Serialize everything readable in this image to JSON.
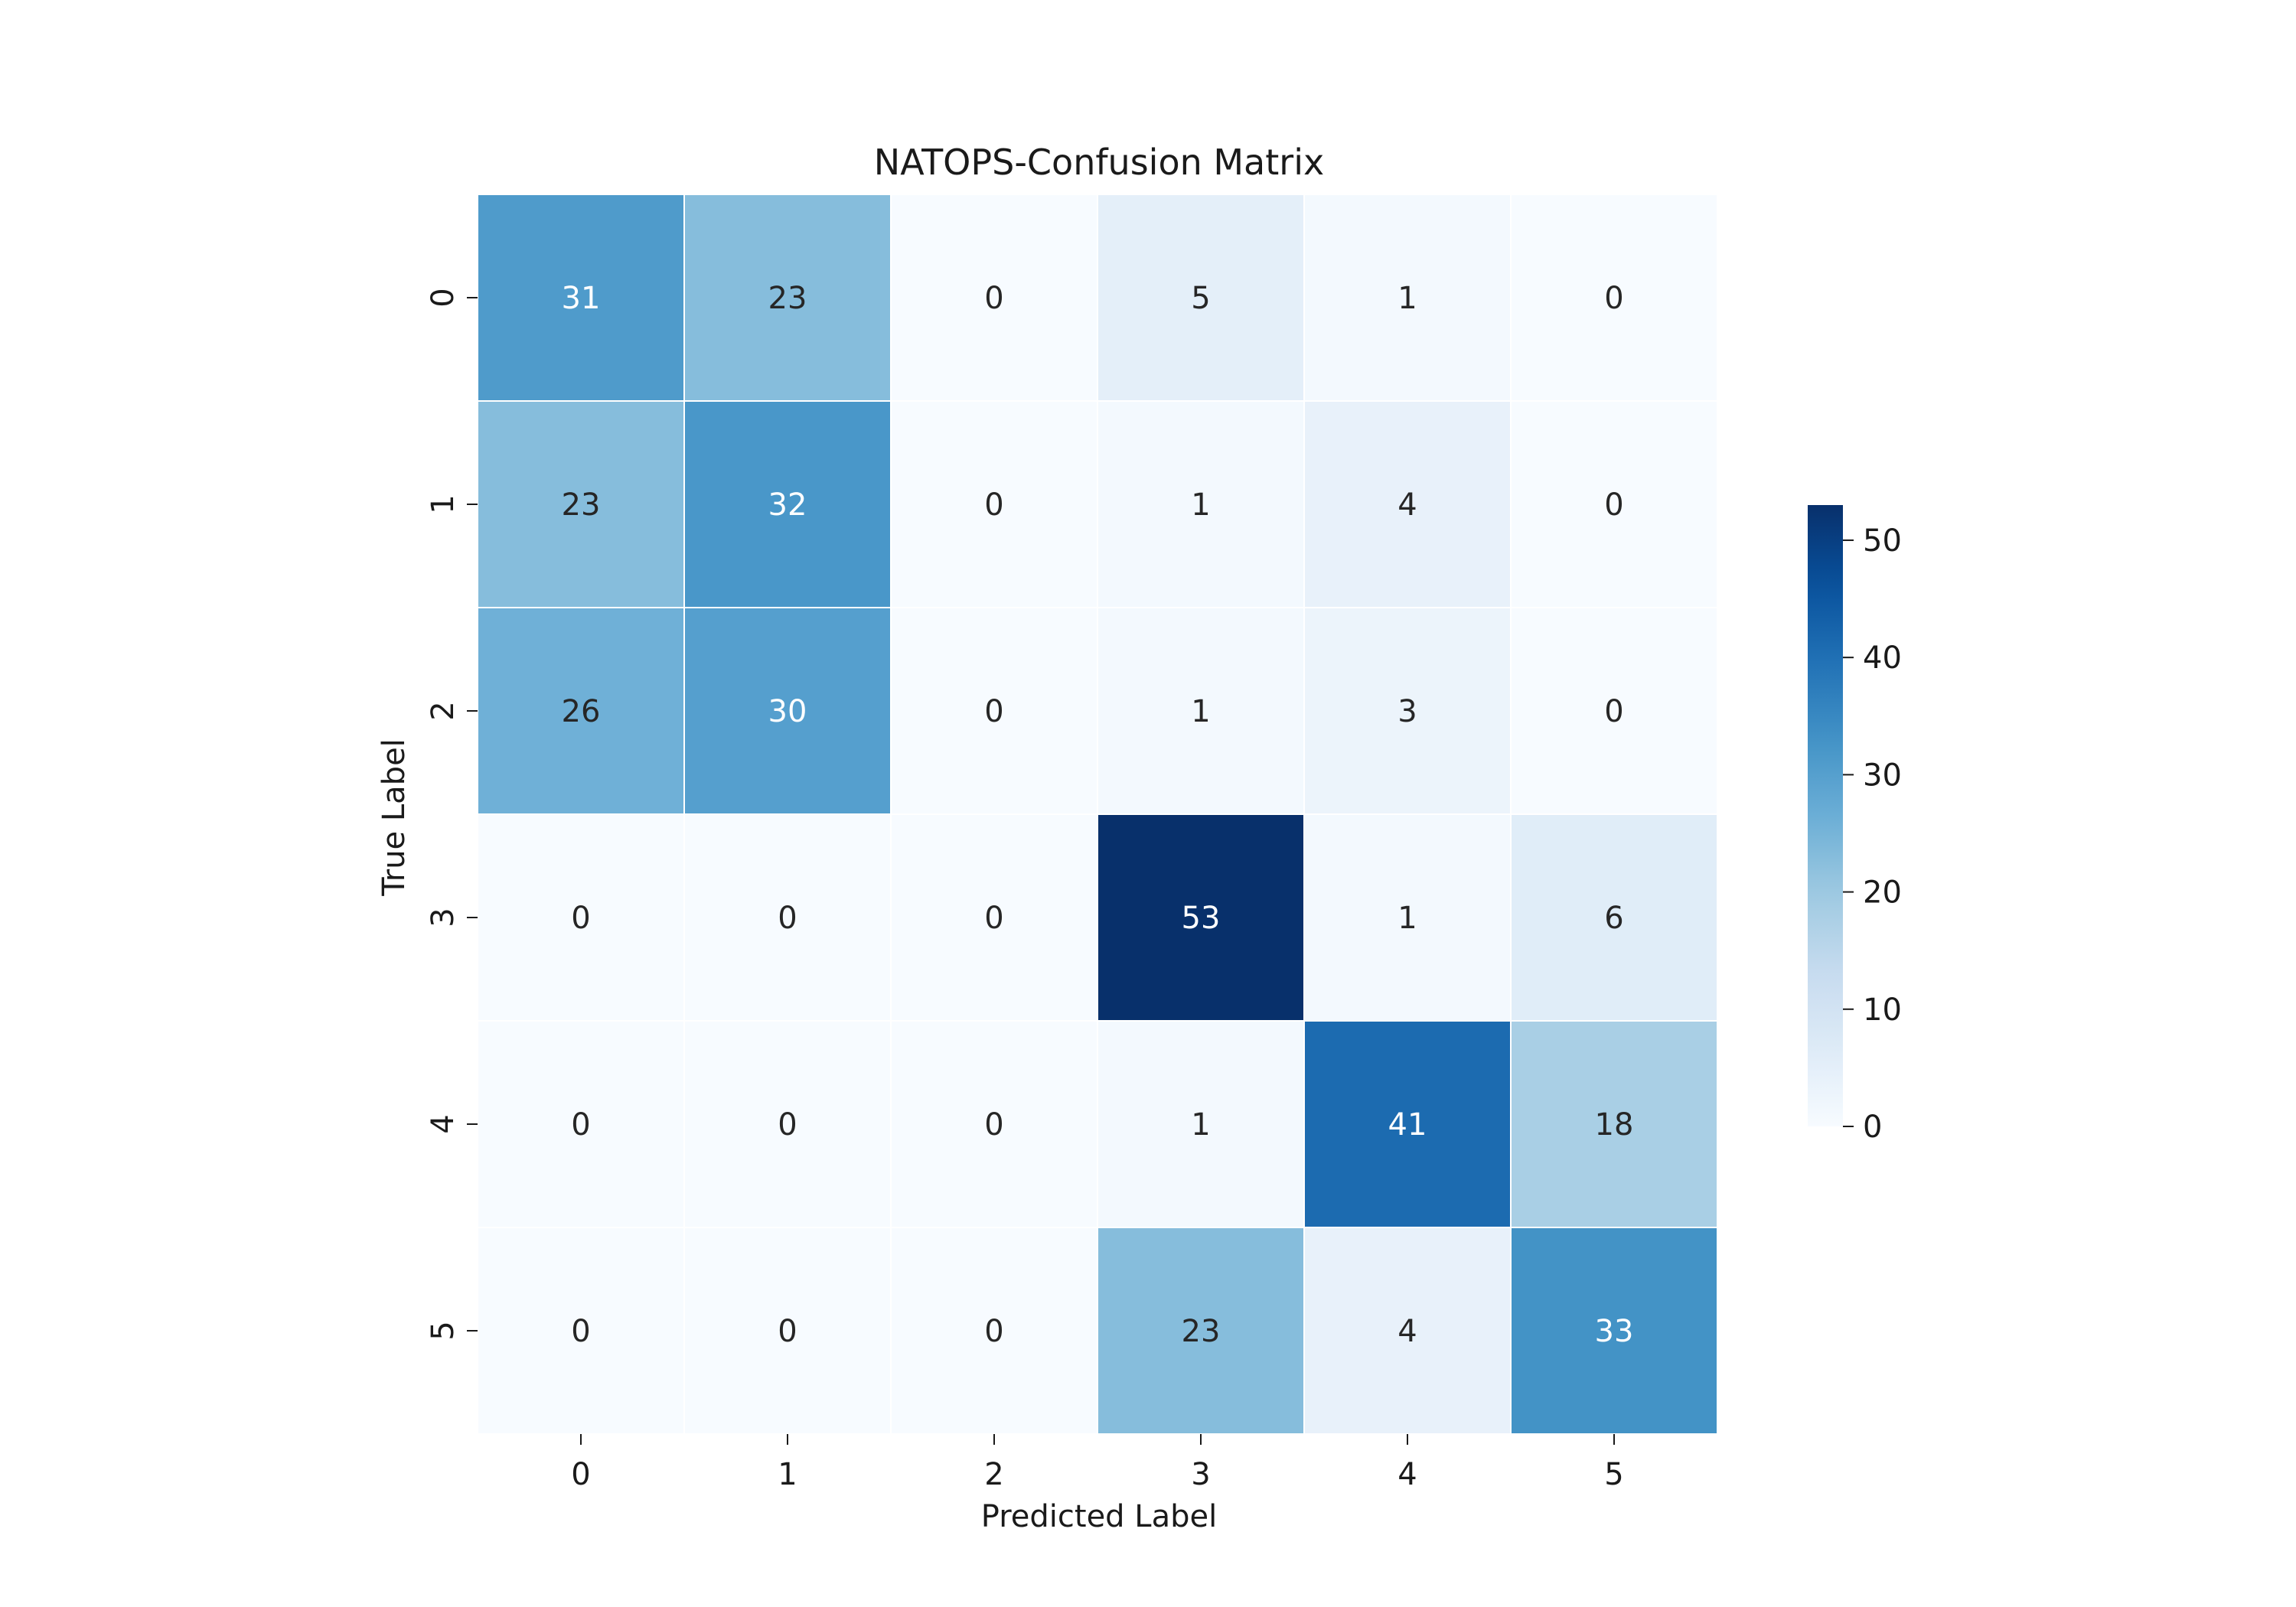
{
  "chart_data": {
    "type": "heatmap",
    "title": "NATOPS-Confusion Matrix",
    "xlabel": "Predicted Label",
    "ylabel": "True Label",
    "x_categories": [
      "0",
      "1",
      "2",
      "3",
      "4",
      "5"
    ],
    "y_categories": [
      "0",
      "1",
      "2",
      "3",
      "4",
      "5"
    ],
    "values": [
      [
        31,
        23,
        0,
        5,
        1,
        0
      ],
      [
        23,
        32,
        0,
        1,
        4,
        0
      ],
      [
        26,
        30,
        0,
        1,
        3,
        0
      ],
      [
        0,
        0,
        0,
        53,
        1,
        6
      ],
      [
        0,
        0,
        0,
        1,
        41,
        18
      ],
      [
        0,
        0,
        0,
        23,
        4,
        33
      ]
    ],
    "colormap": "Blues",
    "colorbar": {
      "range": [
        0,
        53
      ],
      "ticks": [
        0,
        10,
        20,
        30,
        40,
        50
      ]
    },
    "annotations": true,
    "grid": false
  }
}
